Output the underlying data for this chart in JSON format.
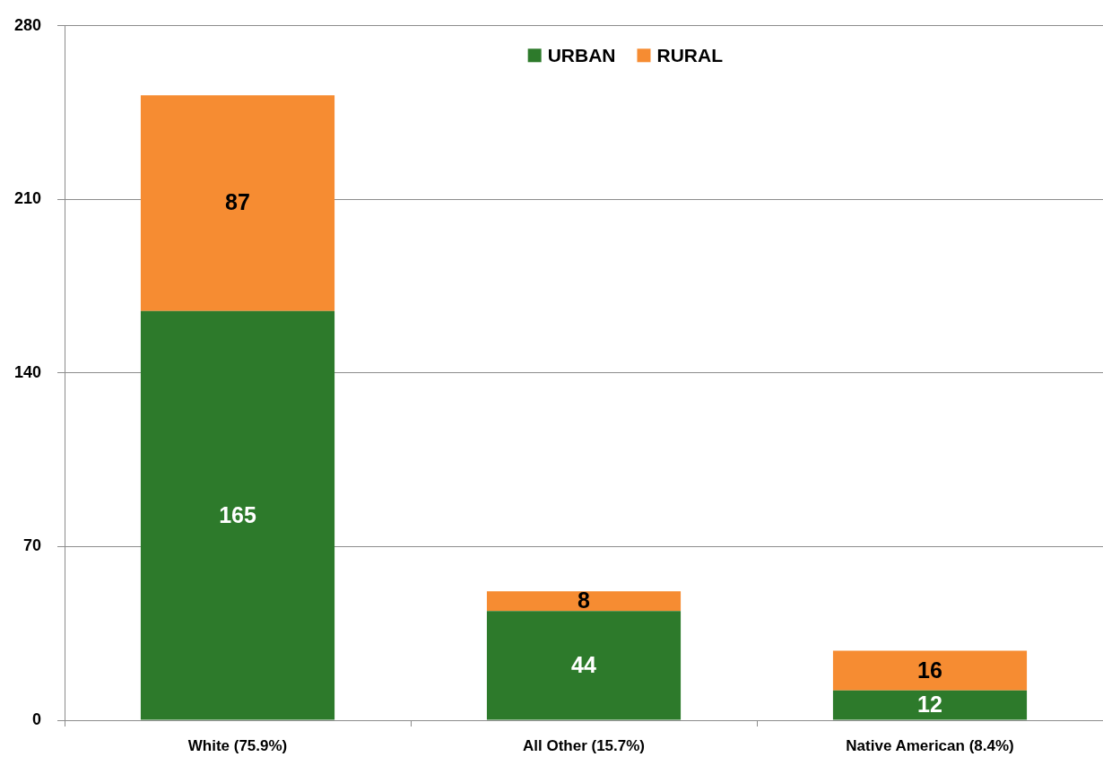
{
  "chart_data": {
    "type": "bar",
    "categories": [
      "White (75.9%)",
      "All Other (15.7%)",
      "Native American (8.4%)"
    ],
    "series": [
      {
        "name": "URBAN",
        "color": "#2d7a2b",
        "values": [
          165,
          44,
          12
        ]
      },
      {
        "name": "RURAL",
        "color": "#f68c32",
        "values": [
          87,
          8,
          16
        ]
      }
    ],
    "stacked": true,
    "ylim": [
      0,
      280
    ],
    "yticks": [
      0,
      70,
      140,
      210,
      280
    ],
    "grid": "y",
    "legend": "top",
    "data_labels": true
  }
}
